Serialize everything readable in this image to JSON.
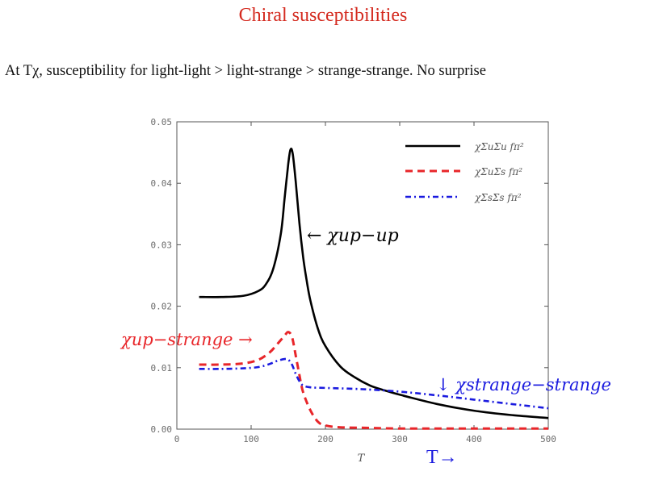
{
  "slide": {
    "title": "Chiral susceptibilities",
    "subtitle": "At Tχ, susceptibility for light-light > light-strange > strange-strange. No surprise"
  },
  "colors": {
    "title": "#d42a1f",
    "black": "#000000",
    "red": "#e8262a",
    "blue": "#1a1adf",
    "axis": "#555555"
  },
  "annotations": {
    "up_up": "← χup−up",
    "up_strange": "χup−strange →",
    "strange_strange": "↓ χstrange−strange",
    "t_arrow": "T→"
  },
  "chart_data": {
    "type": "line",
    "title": "",
    "xlabel": "T",
    "ylabel": "",
    "xlim": [
      0,
      500
    ],
    "ylim": [
      0,
      0.05
    ],
    "xticks": [
      0,
      100,
      200,
      300,
      400,
      500
    ],
    "xtick_labels": [
      "0",
      "100",
      "200",
      "300",
      "400",
      "500"
    ],
    "yticks": [
      0,
      0.01,
      0.02,
      0.03,
      0.04,
      0.05
    ],
    "ytick_labels": [
      "0.00",
      "0.01",
      "0.02",
      "0.03",
      "0.04",
      "0.05"
    ],
    "legend_position": "top-right",
    "series": [
      {
        "name": "χΣuΣu fπ²",
        "style": "solid",
        "color": "#000000",
        "x": [
          30,
          60,
          90,
          110,
          120,
          130,
          140,
          145,
          150,
          153,
          156,
          160,
          165,
          170,
          175,
          180,
          190,
          200,
          220,
          240,
          260,
          280,
          300,
          350,
          400,
          450,
          500
        ],
        "y": [
          0.0215,
          0.0215,
          0.0217,
          0.0225,
          0.0236,
          0.0262,
          0.0318,
          0.0375,
          0.0432,
          0.0455,
          0.0448,
          0.0403,
          0.0335,
          0.028,
          0.024,
          0.0208,
          0.0163,
          0.0135,
          0.0102,
          0.0084,
          0.0071,
          0.0063,
          0.0056,
          0.0041,
          0.003,
          0.0023,
          0.0018
        ]
      },
      {
        "name": "χΣuΣs fπ²",
        "style": "dashed",
        "color": "#e8262a",
        "x": [
          30,
          60,
          90,
          110,
          125,
          135,
          145,
          150,
          155,
          160,
          165,
          170,
          180,
          190,
          200,
          220,
          260,
          300,
          400,
          500
        ],
        "y": [
          0.0105,
          0.0105,
          0.0107,
          0.0113,
          0.0125,
          0.0138,
          0.0152,
          0.0158,
          0.015,
          0.012,
          0.0088,
          0.006,
          0.003,
          0.0012,
          0.0006,
          0.0003,
          0.0002,
          0.0001,
          0.0001,
          0.0001
        ]
      },
      {
        "name": "χΣsΣs fπ²",
        "style": "dashdot",
        "color": "#1a1adf",
        "x": [
          30,
          60,
          90,
          110,
          125,
          135,
          145,
          150,
          155,
          160,
          165,
          170,
          180,
          200,
          250,
          300,
          350,
          400,
          450,
          500
        ],
        "y": [
          0.0098,
          0.0098,
          0.0099,
          0.0101,
          0.0106,
          0.0111,
          0.0114,
          0.0113,
          0.0105,
          0.009,
          0.0078,
          0.0071,
          0.0068,
          0.0067,
          0.0065,
          0.0061,
          0.0055,
          0.0048,
          0.0041,
          0.0034
        ]
      }
    ]
  }
}
